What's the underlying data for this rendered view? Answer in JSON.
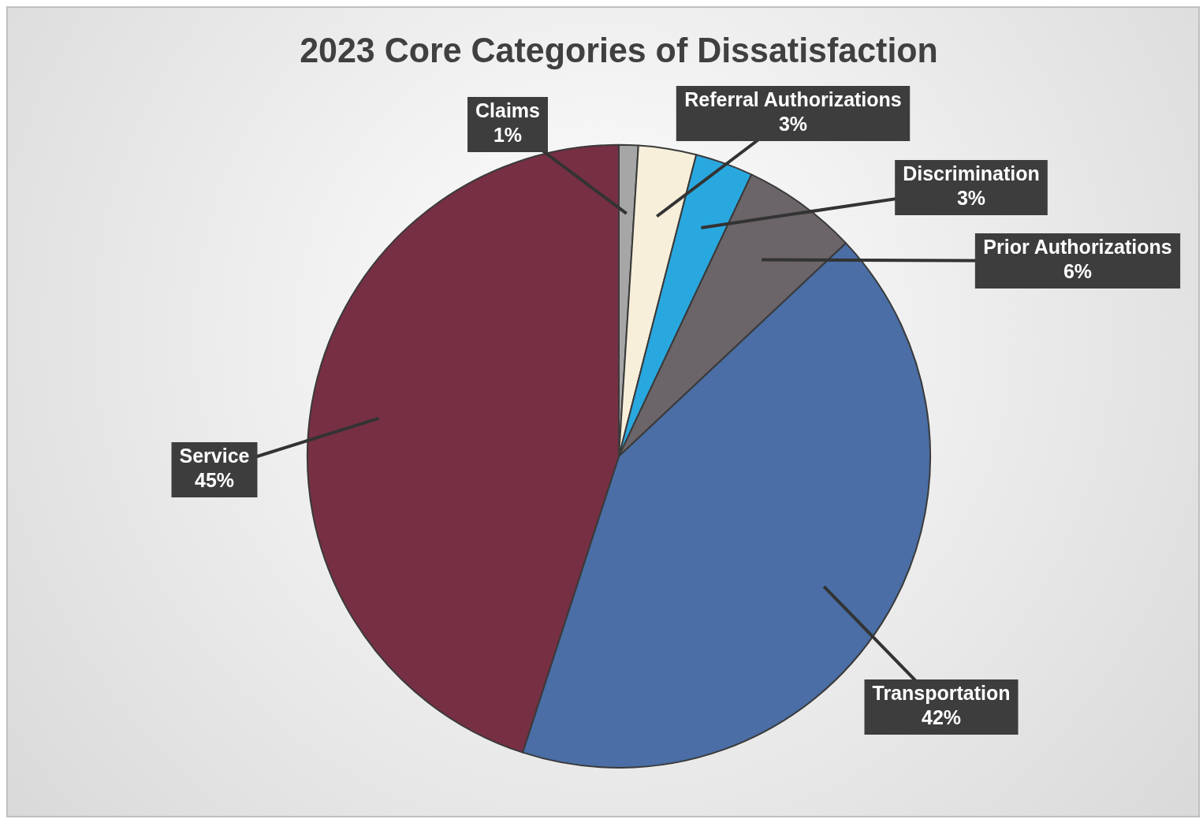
{
  "chart_data": {
    "type": "pie",
    "title": "2023 Core Categories of Dissatisfaction",
    "categories": [
      "Claims",
      "Referral Authorizations",
      "Discrimination",
      "Prior Authorizations",
      "Transportation",
      "Service"
    ],
    "values": [
      1,
      3,
      3,
      6,
      42,
      45
    ],
    "value_labels": [
      "1%",
      "3%",
      "3%",
      "6%",
      "42%",
      "45%"
    ],
    "colors": [
      "#a6a6a6",
      "#f7efd9",
      "#29a8e0",
      "#6b6468",
      "#4a6ea5",
      "#772f43"
    ],
    "legend": false
  }
}
